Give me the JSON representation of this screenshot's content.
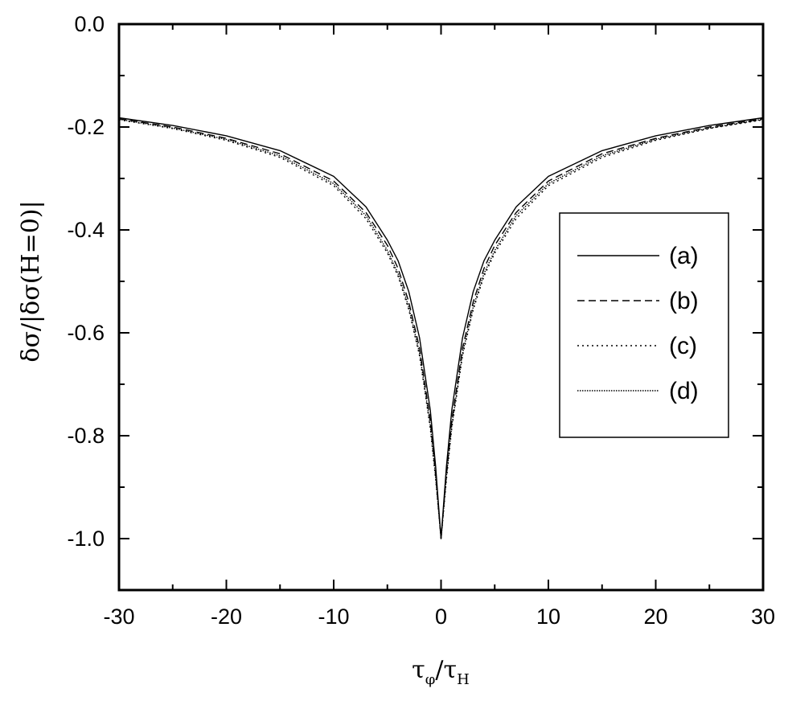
{
  "chart_data": {
    "type": "line",
    "xlabel": {
      "main": "τ",
      "sub": "φ",
      "sep": "/",
      "main2": "τ",
      "sub2": "H"
    },
    "ylabel": "δσ/|δσ(H=0)|",
    "xlim": [
      -30,
      30
    ],
    "ylim": [
      -1.1,
      0.0
    ],
    "xticks": [
      -30,
      -20,
      -10,
      0,
      10,
      20,
      30
    ],
    "xtick_labels": [
      "-30",
      "-20",
      "-10",
      "0",
      "10",
      "20",
      "30"
    ],
    "yticks": [
      0.0,
      -0.2,
      -0.4,
      -0.6,
      -0.8,
      -1.0
    ],
    "ytick_labels": [
      "0.0",
      "-0.2",
      "-0.4",
      "-0.6",
      "-0.8",
      "-1.0"
    ],
    "legend_position": "right",
    "grid": false,
    "series": [
      {
        "name": "(a)",
        "style": "solid",
        "x": [
          0,
          0.5,
          1,
          2,
          3,
          4,
          5,
          7,
          10,
          15,
          20,
          25,
          30
        ],
        "y": [
          -1.0,
          -0.86,
          -0.75,
          -0.61,
          -0.52,
          -0.46,
          -0.42,
          -0.355,
          -0.296,
          -0.246,
          -0.217,
          -0.197,
          -0.182
        ]
      },
      {
        "name": "(b)",
        "style": "dashed",
        "x": [
          0,
          0.5,
          1,
          2,
          3,
          4,
          5,
          7,
          10,
          15,
          20,
          25,
          30
        ],
        "y": [
          -1.0,
          -0.875,
          -0.77,
          -0.63,
          -0.54,
          -0.475,
          -0.43,
          -0.366,
          -0.305,
          -0.252,
          -0.222,
          -0.2,
          -0.184
        ]
      },
      {
        "name": "(c)",
        "style": "dotted",
        "x": [
          0,
          0.5,
          1,
          2,
          3,
          4,
          5,
          7,
          10,
          15,
          20,
          25,
          30
        ],
        "y": [
          -1.0,
          -0.885,
          -0.785,
          -0.645,
          -0.555,
          -0.49,
          -0.445,
          -0.378,
          -0.314,
          -0.259,
          -0.226,
          -0.203,
          -0.186
        ]
      },
      {
        "name": "(d)",
        "style": "densely-dotted",
        "x": [
          0,
          0.5,
          1,
          2,
          3,
          4,
          5,
          7,
          10,
          15,
          20,
          25,
          30
        ],
        "y": [
          -1.0,
          -0.88,
          -0.78,
          -0.64,
          -0.55,
          -0.485,
          -0.44,
          -0.372,
          -0.31,
          -0.256,
          -0.224,
          -0.202,
          -0.185
        ]
      }
    ]
  }
}
